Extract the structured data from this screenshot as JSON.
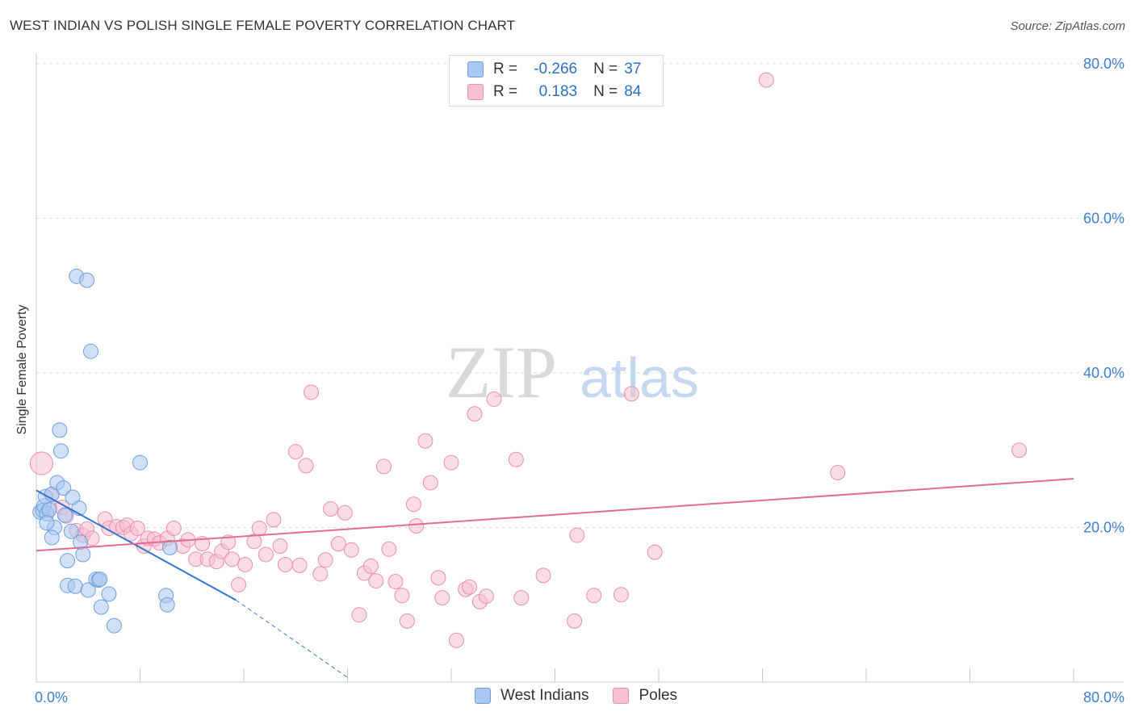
{
  "title": "WEST INDIAN VS POLISH SINGLE FEMALE POVERTY CORRELATION CHART",
  "source": "Source: ZipAtlas.com",
  "legend": {
    "rows": [
      {
        "r_label": "R =",
        "r_value": "-0.266",
        "n_label": "N =",
        "n_value": "37"
      },
      {
        "r_label": "R =",
        "r_value": "0.183",
        "n_label": "N =",
        "n_value": "84"
      }
    ]
  },
  "bottom_legend": [
    "West Indians",
    "Poles"
  ],
  "watermark": "ZIPatlas",
  "colors": {
    "blue_fill": "#aac8f0",
    "blue_stroke": "#6f9fdc",
    "blue_line": "#2e74d0",
    "pink_fill": "#f6c0d0",
    "pink_stroke": "#ec8fab",
    "pink_line": "#e26a98",
    "axis_text": "#3d7fd1"
  },
  "chart_data": {
    "type": "scatter",
    "title": "WEST INDIAN VS POLISH SINGLE FEMALE POVERTY CORRELATION CHART",
    "xlabel": "",
    "ylabel": "Single Female Poverty",
    "xlim": [
      0,
      80
    ],
    "ylim": [
      0,
      80
    ],
    "x_tick_labels": [
      "0.0%",
      "80.0%"
    ],
    "y_tick_labels": [
      "80.0%",
      "60.0%",
      "40.0%",
      "20.0%"
    ],
    "y_ticks": [
      80,
      60,
      40,
      20
    ],
    "grid": true,
    "series": [
      {
        "name": "West Indians",
        "r": -0.266,
        "n": 37,
        "trend": {
          "x0": 0,
          "y0": 24.8,
          "x1": 15.4,
          "y1": 10.6,
          "dash_to_x": 24,
          "dash_to_y": 0.6
        },
        "points": [
          [
            0.3,
            22.0
          ],
          [
            0.5,
            22.2
          ],
          [
            0.6,
            22.8
          ],
          [
            0.7,
            24.0
          ],
          [
            0.8,
            21.8
          ],
          [
            1.0,
            22.3
          ],
          [
            1.2,
            24.3
          ],
          [
            1.4,
            20.0
          ],
          [
            1.6,
            25.8
          ],
          [
            1.8,
            32.6
          ],
          [
            1.9,
            29.9
          ],
          [
            2.1,
            25.1
          ],
          [
            2.2,
            21.6
          ],
          [
            2.4,
            12.5
          ],
          [
            2.4,
            15.7
          ],
          [
            2.7,
            19.5
          ],
          [
            2.8,
            23.9
          ],
          [
            3.0,
            12.4
          ],
          [
            3.3,
            22.5
          ],
          [
            3.4,
            18.1
          ],
          [
            3.6,
            16.5
          ],
          [
            4.0,
            11.9
          ],
          [
            4.2,
            42.8
          ],
          [
            3.1,
            52.5
          ],
          [
            3.9,
            52.0
          ],
          [
            4.6,
            13.3
          ],
          [
            4.8,
            13.2
          ],
          [
            5.0,
            9.7
          ],
          [
            5.6,
            11.4
          ],
          [
            6.0,
            7.3
          ],
          [
            8.0,
            28.4
          ],
          [
            10.0,
            11.2
          ],
          [
            10.1,
            10.0
          ],
          [
            10.3,
            17.4
          ],
          [
            4.9,
            13.3
          ],
          [
            1.2,
            18.7
          ],
          [
            0.8,
            20.6
          ]
        ]
      },
      {
        "name": "Poles",
        "r": 0.183,
        "n": 84,
        "trend": {
          "x0": 0,
          "y0": 17.0,
          "x1": 80,
          "y1": 26.3
        },
        "points": [
          [
            0.4,
            28.3
          ],
          [
            1.2,
            24.3
          ],
          [
            2.0,
            22.6
          ],
          [
            2.3,
            21.5
          ],
          [
            3.1,
            19.6
          ],
          [
            3.6,
            19.0
          ],
          [
            3.9,
            19.8
          ],
          [
            4.3,
            18.6
          ],
          [
            5.3,
            21.1
          ],
          [
            5.6,
            19.9
          ],
          [
            6.2,
            20.1
          ],
          [
            6.7,
            20.0
          ],
          [
            7.0,
            20.3
          ],
          [
            7.3,
            19.2
          ],
          [
            7.8,
            19.9
          ],
          [
            8.3,
            17.6
          ],
          [
            8.6,
            18.6
          ],
          [
            9.1,
            18.5
          ],
          [
            9.5,
            18.0
          ],
          [
            10.1,
            18.6
          ],
          [
            10.6,
            19.9
          ],
          [
            11.3,
            17.6
          ],
          [
            11.7,
            18.4
          ],
          [
            12.3,
            15.9
          ],
          [
            12.8,
            17.9
          ],
          [
            13.2,
            15.9
          ],
          [
            13.9,
            15.6
          ],
          [
            14.3,
            16.9
          ],
          [
            14.8,
            18.1
          ],
          [
            15.1,
            15.9
          ],
          [
            15.6,
            12.6
          ],
          [
            16.1,
            15.2
          ],
          [
            16.8,
            18.2
          ],
          [
            17.2,
            19.9
          ],
          [
            17.7,
            16.5
          ],
          [
            18.3,
            21.0
          ],
          [
            18.8,
            17.6
          ],
          [
            19.2,
            15.2
          ],
          [
            20.0,
            29.8
          ],
          [
            20.3,
            15.1
          ],
          [
            20.8,
            28.0
          ],
          [
            21.2,
            37.5
          ],
          [
            21.9,
            14.0
          ],
          [
            22.3,
            15.8
          ],
          [
            22.7,
            22.4
          ],
          [
            23.3,
            17.9
          ],
          [
            23.8,
            21.9
          ],
          [
            24.3,
            17.1
          ],
          [
            24.9,
            8.7
          ],
          [
            25.3,
            14.1
          ],
          [
            25.8,
            15.0
          ],
          [
            26.2,
            13.1
          ],
          [
            26.8,
            27.9
          ],
          [
            27.2,
            17.2
          ],
          [
            27.7,
            13.0
          ],
          [
            28.2,
            11.2
          ],
          [
            28.6,
            7.9
          ],
          [
            29.1,
            23.0
          ],
          [
            29.3,
            20.2
          ],
          [
            30.0,
            31.2
          ],
          [
            30.4,
            25.8
          ],
          [
            31.0,
            13.5
          ],
          [
            31.3,
            10.9
          ],
          [
            32.0,
            28.4
          ],
          [
            32.4,
            5.4
          ],
          [
            33.1,
            12.0
          ],
          [
            33.4,
            12.3
          ],
          [
            33.8,
            34.7
          ],
          [
            34.2,
            10.4
          ],
          [
            34.7,
            11.1
          ],
          [
            35.3,
            36.6
          ],
          [
            37.0,
            28.8
          ],
          [
            37.4,
            10.9
          ],
          [
            39.1,
            13.8
          ],
          [
            41.5,
            7.9
          ],
          [
            41.7,
            19.0
          ],
          [
            43.0,
            11.2
          ],
          [
            45.1,
            11.3
          ],
          [
            45.9,
            37.3
          ],
          [
            47.7,
            16.8
          ],
          [
            56.3,
            77.9
          ],
          [
            61.8,
            27.1
          ],
          [
            75.8,
            30.0
          ],
          [
            1.0,
            22.6
          ]
        ]
      }
    ]
  }
}
